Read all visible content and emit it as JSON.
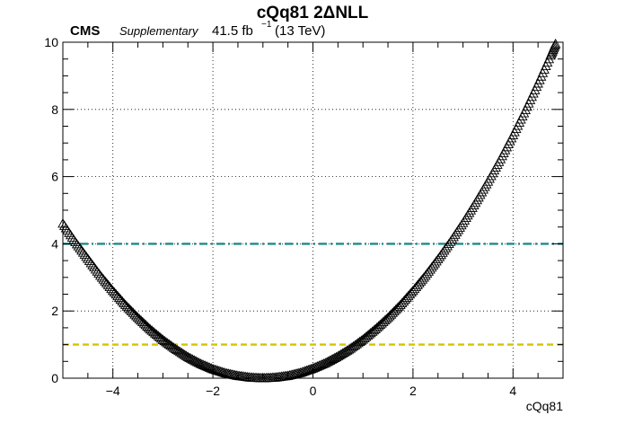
{
  "chart_data": {
    "type": "scatter",
    "title": "cQq81 2ΔNLL",
    "cms_label": "CMS",
    "cms_extra": "Supplementary",
    "lumi_value": "41.5 fb",
    "lumi_exponent": "−1",
    "lumi_energy": "(13 TeV)",
    "xlabel": "cQq81",
    "ylabel": "",
    "xlim": [
      -5,
      5
    ],
    "ylim": [
      0,
      10
    ],
    "x_ticks": [
      -4,
      -2,
      0,
      2,
      4
    ],
    "x_tick_labels": [
      "−4",
      "−2",
      "0",
      "2",
      "4"
    ],
    "y_ticks": [
      0,
      2,
      4,
      6,
      8,
      10
    ],
    "y_tick_labels": [
      "0",
      "2",
      "4",
      "6",
      "8",
      "10"
    ],
    "grid": true,
    "marker": "open-triangle",
    "curve_points": [
      [
        -5.0,
        4.6
      ],
      [
        -4.75,
        4.05
      ],
      [
        -4.5,
        3.55
      ],
      [
        -4.25,
        3.05
      ],
      [
        -4.0,
        2.6
      ],
      [
        -3.75,
        2.18
      ],
      [
        -3.5,
        1.8
      ],
      [
        -3.25,
        1.45
      ],
      [
        -3.0,
        1.14
      ],
      [
        -2.75,
        0.87
      ],
      [
        -2.5,
        0.63
      ],
      [
        -2.25,
        0.43
      ],
      [
        -2.0,
        0.27
      ],
      [
        -1.75,
        0.15
      ],
      [
        -1.5,
        0.07
      ],
      [
        -1.25,
        0.02
      ],
      [
        -1.0,
        0.0
      ],
      [
        -0.75,
        0.02
      ],
      [
        -0.5,
        0.07
      ],
      [
        -0.25,
        0.16
      ],
      [
        0.0,
        0.29
      ],
      [
        0.25,
        0.45
      ],
      [
        0.5,
        0.65
      ],
      [
        0.75,
        0.88
      ],
      [
        1.0,
        1.15
      ],
      [
        1.25,
        1.46
      ],
      [
        1.5,
        1.8
      ],
      [
        1.75,
        2.18
      ],
      [
        2.0,
        2.6
      ],
      [
        2.25,
        3.05
      ],
      [
        2.5,
        3.54
      ],
      [
        2.75,
        4.06
      ],
      [
        3.0,
        4.62
      ],
      [
        3.25,
        5.22
      ],
      [
        3.5,
        5.85
      ],
      [
        3.75,
        6.52
      ],
      [
        4.0,
        7.23
      ],
      [
        4.25,
        7.98
      ],
      [
        4.5,
        8.77
      ],
      [
        4.75,
        9.6
      ],
      [
        4.85,
        9.95
      ]
    ],
    "reference_lines": [
      {
        "y": 4,
        "color": "#1f8a8a",
        "style": "dash-dot"
      },
      {
        "y": 1,
        "color": "#d4c400",
        "style": "dashed"
      }
    ]
  }
}
